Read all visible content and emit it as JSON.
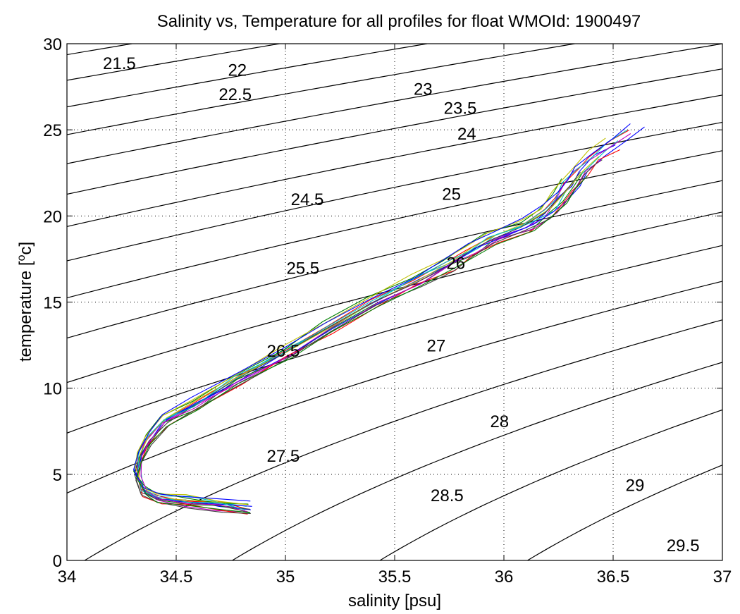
{
  "chart_data": {
    "type": "line",
    "title": "Salinity vs, Temperature for all profiles for float WMOId: 1900497",
    "xlabel": "salinity [psu]",
    "ylabel_prefix": "temperature [",
    "ylabel_sup": "o",
    "ylabel_suffix": "c]",
    "xlim": [
      34,
      37
    ],
    "ylim": [
      0,
      30
    ],
    "grid": true,
    "x_ticks": [
      {
        "value": 34,
        "label": "34"
      },
      {
        "value": 34.5,
        "label": "34.5"
      },
      {
        "value": 35,
        "label": "35"
      },
      {
        "value": 35.5,
        "label": "35.5"
      },
      {
        "value": 36,
        "label": "36"
      },
      {
        "value": 36.5,
        "label": "36.5"
      },
      {
        "value": 37,
        "label": "37"
      }
    ],
    "y_ticks": [
      {
        "value": 0,
        "label": "0"
      },
      {
        "value": 5,
        "label": "5"
      },
      {
        "value": 10,
        "label": "10"
      },
      {
        "value": 15,
        "label": "15"
      },
      {
        "value": 20,
        "label": "20"
      },
      {
        "value": 25,
        "label": "25"
      },
      {
        "value": 30,
        "label": "30"
      }
    ],
    "density_contours": [
      {
        "level": 21.5,
        "label": "21.5",
        "label_s": 34.24,
        "label_t": 28.9
      },
      {
        "level": 22,
        "label": "22",
        "label_s": 34.78,
        "label_t": 28.5
      },
      {
        "level": 22.5,
        "label": "22.5",
        "label_s": 34.77,
        "label_t": 27.1
      },
      {
        "level": 23,
        "label": "23",
        "label_s": 35.63,
        "label_t": 27.4
      },
      {
        "level": 23.5,
        "label": "23.5",
        "label_s": 35.8,
        "label_t": 26.3
      },
      {
        "level": 24,
        "label": "24",
        "label_s": 35.83,
        "label_t": 24.8
      },
      {
        "level": 24.5,
        "label": "24.5",
        "label_s": 35.1,
        "label_t": 21.0
      },
      {
        "level": 25,
        "label": "25",
        "label_s": 35.76,
        "label_t": 21.3
      },
      {
        "level": 25.5,
        "label": "25.5",
        "label_s": 35.08,
        "label_t": 17.0
      },
      {
        "level": 26,
        "label": "26",
        "label_s": 35.78,
        "label_t": 17.3
      },
      {
        "level": 26.5,
        "label": "26.5",
        "label_s": 34.99,
        "label_t": 12.2
      },
      {
        "level": 27,
        "label": "27",
        "label_s": 35.69,
        "label_t": 12.5
      },
      {
        "level": 27.5,
        "label": "27.5",
        "label_s": 34.99,
        "label_t": 6.1
      },
      {
        "level": 28,
        "label": "28",
        "label_s": 35.98,
        "label_t": 8.1
      },
      {
        "level": 28.5,
        "label": "28.5",
        "label_s": 35.74,
        "label_t": 3.8
      },
      {
        "level": 29,
        "label": "29",
        "label_s": 36.6,
        "label_t": 4.4
      },
      {
        "level": 29.5,
        "label": "29.5",
        "label_s": 36.82,
        "label_t": 0.9
      }
    ],
    "profile_mean": {
      "s": [
        34.83,
        34.7,
        34.55,
        34.42,
        34.35,
        34.32,
        34.33,
        34.37,
        34.45,
        34.58,
        34.78,
        35.0,
        35.2,
        35.4,
        35.6,
        35.75,
        35.85,
        35.95,
        36.1,
        36.2,
        36.25,
        36.3,
        36.35,
        36.42,
        36.5,
        36.6
      ],
      "t": [
        3.0,
        3.2,
        3.4,
        3.6,
        4.0,
        5.0,
        6.0,
        7.0,
        8.0,
        9.0,
        10.5,
        12.0,
        13.5,
        15.0,
        16.2,
        17.2,
        18.0,
        18.6,
        19.4,
        20.2,
        21.0,
        21.8,
        22.6,
        23.4,
        24.2,
        25.0
      ]
    },
    "series": [
      {
        "color": "#0000ff",
        "ds": 0.0,
        "dt": 0.0,
        "top": 0.98
      },
      {
        "color": "#008000",
        "ds": 0.02,
        "dt": -0.1,
        "top": 0.92
      },
      {
        "color": "#ff0000",
        "ds": -0.02,
        "dt": 0.1,
        "top": 1.0
      },
      {
        "color": "#00bfbf",
        "ds": 0.03,
        "dt": 0.2,
        "top": 0.95
      },
      {
        "color": "#bf00bf",
        "ds": -0.03,
        "dt": -0.2,
        "top": 1.02
      },
      {
        "color": "#bfbf00",
        "ds": 0.01,
        "dt": 0.15,
        "top": 0.94
      },
      {
        "color": "#404040",
        "ds": -0.01,
        "dt": -0.15,
        "top": 0.9
      },
      {
        "color": "#0000ff",
        "ds": 0.045,
        "dt": 0.05,
        "top": 0.99
      },
      {
        "color": "#008000",
        "ds": -0.04,
        "dt": 0.25,
        "top": 0.86
      },
      {
        "color": "#ff0000",
        "ds": 0.025,
        "dt": -0.25,
        "top": 0.97
      },
      {
        "color": "#00bfbf",
        "ds": -0.025,
        "dt": 0.05,
        "top": 1.01
      },
      {
        "color": "#bf00bf",
        "ds": 0.04,
        "dt": -0.05,
        "top": 0.93
      },
      {
        "color": "#bfbf00",
        "ds": -0.045,
        "dt": 0.3,
        "top": 0.96
      },
      {
        "color": "#404040",
        "ds": 0.015,
        "dt": -0.3,
        "top": 0.91
      },
      {
        "color": "#0000ff",
        "ds": -0.015,
        "dt": 0.35,
        "top": 1.0
      },
      {
        "color": "#008000",
        "ds": 0.035,
        "dt": -0.35,
        "top": 0.88
      }
    ]
  }
}
